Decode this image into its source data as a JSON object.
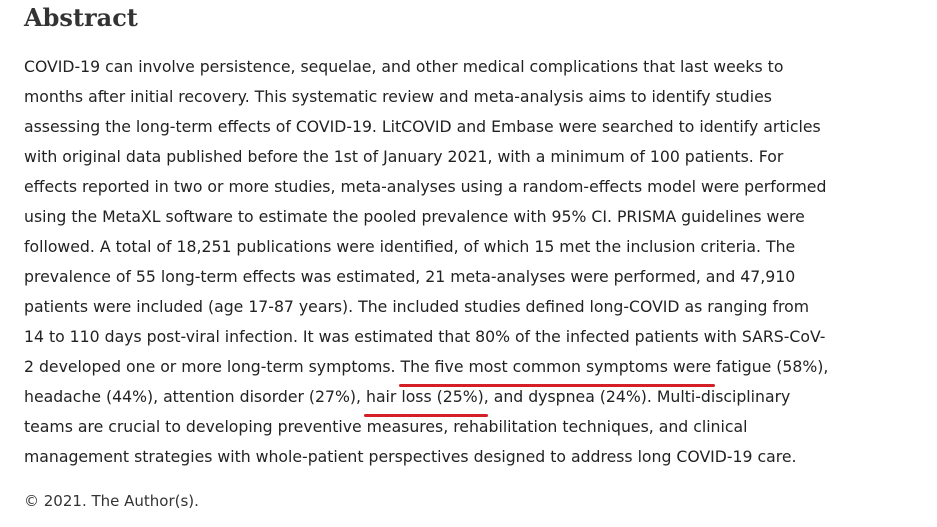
{
  "heading": "Abstract",
  "abstract": {
    "line1": "COVID-19 can involve persistence, sequelae, and other medical complications that last weeks to",
    "line2": "months after initial recovery. This systematic review and meta-analysis aims to identify studies",
    "line3": "assessing the long-term effects of COVID-19. LitCOVID and Embase were searched to identify articles",
    "line4": "with original data published before the 1st of January 2021, with a minimum of 100 patients. For",
    "line5": "effects reported in two or more studies, meta-analyses using a random-effects model were performed",
    "line6": "using the MetaXL software to estimate the pooled prevalence with 95% CI. PRISMA guidelines were",
    "line7": "followed. A total of 18,251 publications were identified, of which 15 met the inclusion criteria. The",
    "line8": "prevalence of 55 long-term effects was estimated, 21 meta-analyses were performed, and 47,910",
    "line9": "patients were included (age 17-87 years). The included studies defined long-COVID as ranging from",
    "line10": "14 to 110 days post-viral infection. It was estimated that 80% of the infected patients with SARS-CoV-",
    "line11_before": "2 developed one or more long-term symptoms. ",
    "line11_highlight": "The five most common symptoms were",
    "line11_after": " fatigue (58%),",
    "line12_before": "headache (44%), attention disorder (27%), ",
    "line12_highlight": "hair loss (25%)",
    "line12_after": ", and dyspnea (24%). Multi-disciplinary",
    "line13": "teams are crucial to developing preventive measures, rehabilitation techniques, and clinical",
    "line14": "management strategies with whole-patient perspectives designed to address long COVID-19 care."
  },
  "copyright": "© 2021. The Author(s).",
  "colors": {
    "highlight_underline": "#d32027"
  }
}
